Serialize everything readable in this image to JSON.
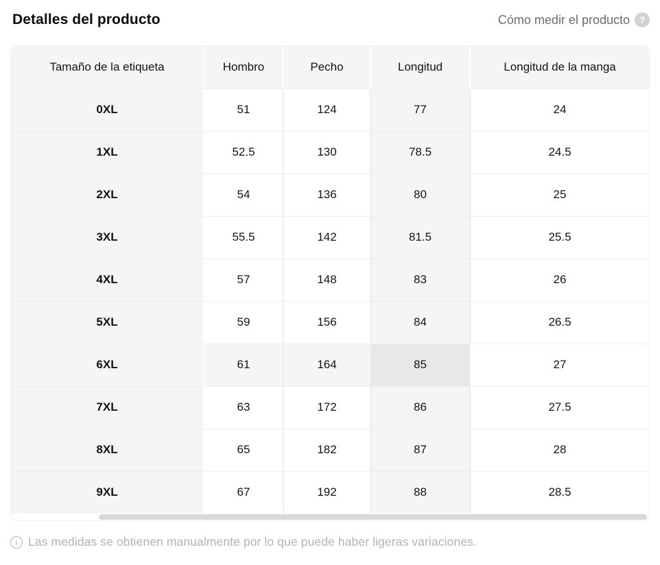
{
  "header": {
    "title": "Detalles del producto",
    "help_link": "Cómo medir el producto",
    "help_icon_glyph": "?"
  },
  "table": {
    "columns": [
      "Tamaño de la etiqueta",
      "Hombro",
      "Pecho",
      "Longitud",
      "Longitud de la manga"
    ],
    "rows": [
      {
        "size": "0XL",
        "values": [
          "51",
          "124",
          "77",
          "24"
        ]
      },
      {
        "size": "1XL",
        "values": [
          "52.5",
          "130",
          "78.5",
          "24.5"
        ]
      },
      {
        "size": "2XL",
        "values": [
          "54",
          "136",
          "80",
          "25"
        ]
      },
      {
        "size": "3XL",
        "values": [
          "55.5",
          "142",
          "81.5",
          "25.5"
        ]
      },
      {
        "size": "4XL",
        "values": [
          "57",
          "148",
          "83",
          "26"
        ]
      },
      {
        "size": "5XL",
        "values": [
          "59",
          "156",
          "84",
          "26.5"
        ]
      },
      {
        "size": "6XL",
        "values": [
          "61",
          "164",
          "85",
          "27"
        ]
      },
      {
        "size": "7XL",
        "values": [
          "63",
          "172",
          "86",
          "27.5"
        ]
      },
      {
        "size": "8XL",
        "values": [
          "65",
          "182",
          "87",
          "28"
        ]
      },
      {
        "size": "9XL",
        "values": [
          "67",
          "192",
          "88",
          "28.5"
        ]
      }
    ],
    "highlight": {
      "row": "6XL",
      "column": "Longitud",
      "cell_value": "85"
    }
  },
  "footer": {
    "note": "Las medidas se obtienen manualmente por lo que puede haber ligeras variaciones.",
    "info_icon_glyph": "i"
  },
  "colors": {
    "header_bg": "#f5f5f6",
    "highlight_cell_bg": "#e8e8ea",
    "grid_line": "#ededee",
    "muted_text": "#b3b3b7",
    "help_text": "#6b6b70",
    "scrollbar_thumb": "#d9d9db"
  }
}
